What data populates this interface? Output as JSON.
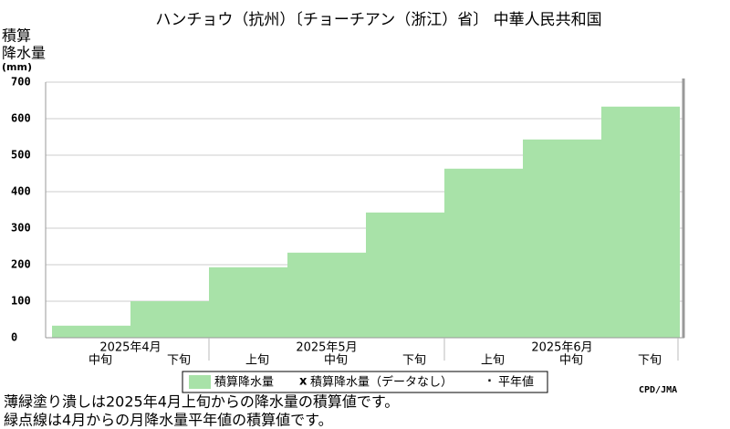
{
  "chart_data": {
    "type": "step-area",
    "title": "ハンチョウ（抗州）〔チョーチアン（浙江）省〕 中華人民共和国",
    "y_label": [
      "積算",
      "降水量",
      "(mm)"
    ],
    "categories": [
      "中旬",
      "下旬",
      "上旬",
      "中旬",
      "下旬",
      "上旬",
      "中旬",
      "下旬"
    ],
    "months": [
      "2025年4月",
      null,
      "2025年5月",
      null,
      null,
      "2025年6月",
      null,
      null
    ],
    "series": [
      {
        "name": "積算降水量",
        "color": "#a8e2a8",
        "values": [
          33,
          100,
          193,
          233,
          343,
          463,
          543,
          633
        ]
      }
    ],
    "legend_extra": [
      {
        "marker": "x",
        "name": "積算降水量（データなし）"
      },
      {
        "marker": "·",
        "name": "平年値"
      }
    ],
    "ylim": [
      0,
      700
    ],
    "yticks": [
      0,
      100,
      200,
      300,
      400,
      500,
      600,
      700
    ],
    "grid": true,
    "credit": "CPD/JMA",
    "notes": [
      "薄緑塗り潰しは2025年4月上旬からの降水量の積算値です。",
      "緑点線は4月からの月降水量平年値の積算値です。"
    ]
  }
}
